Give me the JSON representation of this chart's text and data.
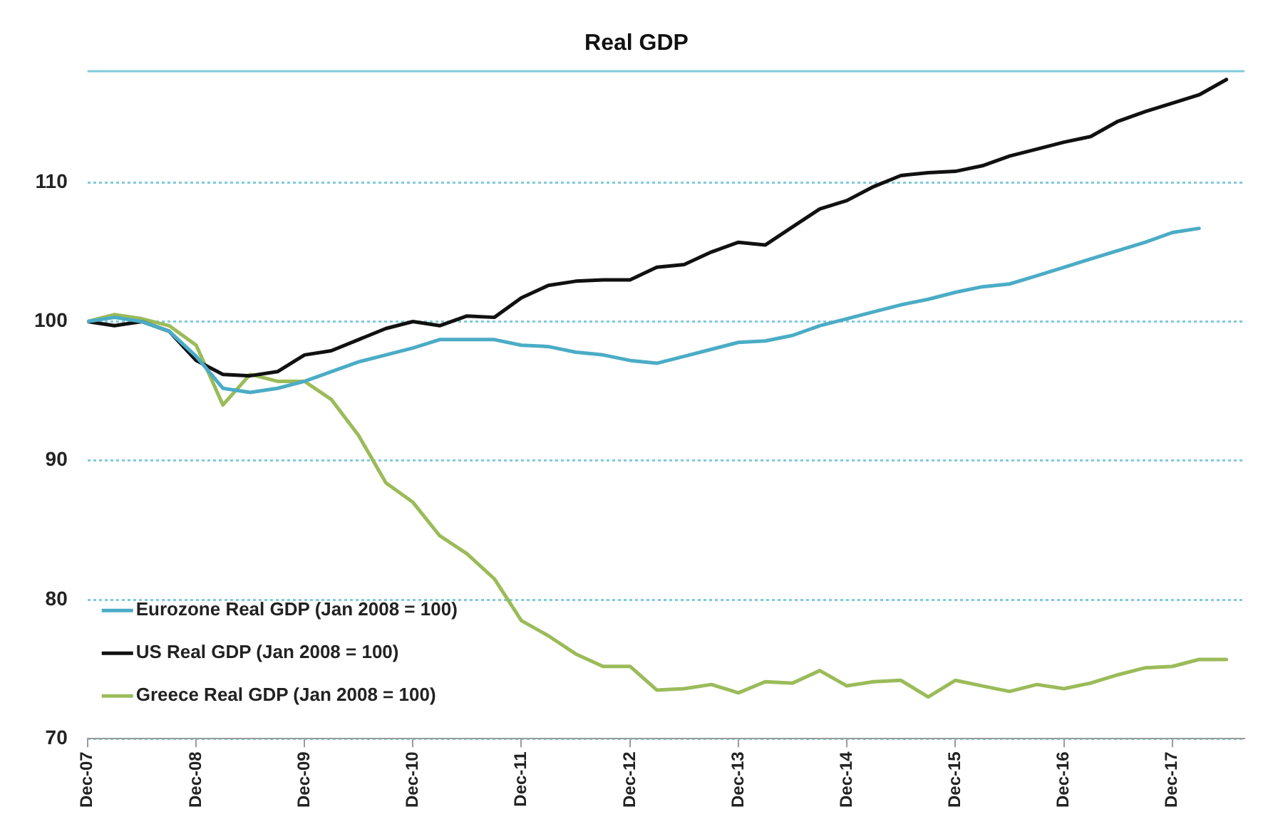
{
  "chart_data": {
    "type": "line",
    "title": "Real GDP",
    "x": [
      "2007-12",
      "2008-03",
      "2008-06",
      "2008-09",
      "2008-12",
      "2009-03",
      "2009-06",
      "2009-09",
      "2009-12",
      "2010-03",
      "2010-06",
      "2010-09",
      "2010-12",
      "2011-03",
      "2011-06",
      "2011-09",
      "2011-12",
      "2012-03",
      "2012-06",
      "2012-09",
      "2012-12",
      "2013-03",
      "2013-06",
      "2013-09",
      "2013-12",
      "2014-03",
      "2014-06",
      "2014-09",
      "2014-12",
      "2015-03",
      "2015-06",
      "2015-09",
      "2015-12",
      "2016-03",
      "2016-06",
      "2016-09",
      "2016-12",
      "2017-03",
      "2017-06",
      "2017-09",
      "2017-12",
      "2018-03",
      "2018-06"
    ],
    "series": [
      {
        "name": "Eurozone Real GDP (Jan 2008 = 100)",
        "color": "#4bacc6",
        "values": [
          100,
          100.3,
          100,
          99.3,
          97.5,
          95.2,
          94.9,
          95.2,
          95.7,
          96.4,
          97.1,
          97.6,
          98.1,
          98.7,
          98.7,
          98.7,
          98.3,
          98.2,
          97.8,
          97.6,
          97.2,
          97.0,
          97.5,
          98.0,
          98.5,
          98.6,
          99.0,
          99.7,
          100.2,
          100.7,
          101.2,
          101.6,
          102.1,
          102.5,
          102.7,
          103.3,
          103.9,
          104.5,
          105.1,
          105.7,
          106.4,
          106.7,
          null
        ]
      },
      {
        "name": "US Real GDP (Jan 2008 = 100)",
        "color": "#111111",
        "values": [
          100,
          99.7,
          100,
          99.3,
          97.2,
          96.2,
          96.1,
          96.4,
          97.6,
          97.9,
          98.7,
          99.5,
          100,
          99.7,
          100.4,
          100.3,
          101.7,
          102.6,
          102.9,
          103.0,
          103.0,
          103.9,
          104.1,
          105.0,
          105.7,
          105.5,
          106.8,
          108.1,
          108.7,
          109.7,
          110.5,
          110.7,
          110.8,
          111.2,
          111.9,
          112.4,
          112.9,
          113.3,
          114.4,
          115.1,
          115.7,
          116.3,
          117.4
        ]
      },
      {
        "name": "Greece Real GDP (Jan 2008 = 100)",
        "color": "#9bbb59",
        "values": [
          100,
          100.5,
          100.2,
          99.7,
          98.3,
          94.0,
          96.2,
          95.7,
          95.7,
          94.4,
          91.8,
          88.4,
          87.0,
          84.6,
          83.3,
          81.5,
          78.5,
          77.4,
          76.1,
          75.2,
          75.2,
          73.5,
          73.6,
          73.9,
          73.3,
          74.1,
          74.0,
          74.9,
          73.8,
          74.1,
          74.2,
          73.0,
          74.2,
          73.8,
          73.4,
          73.9,
          73.6,
          74.0,
          74.6,
          75.1,
          75.2,
          75.7,
          75.7
        ]
      }
    ],
    "xlim": [
      "2007-12",
      "2018-08"
    ],
    "xticks": [
      {
        "value": "2007-12",
        "label": "Dec-07"
      },
      {
        "value": "2008-12",
        "label": "Dec-08"
      },
      {
        "value": "2009-12",
        "label": "Dec-09"
      },
      {
        "value": "2010-12",
        "label": "Dec-10"
      },
      {
        "value": "2011-12",
        "label": "Dec-11"
      },
      {
        "value": "2012-12",
        "label": "Dec-12"
      },
      {
        "value": "2013-12",
        "label": "Dec-13"
      },
      {
        "value": "2014-12",
        "label": "Dec-14"
      },
      {
        "value": "2015-12",
        "label": "Dec-15"
      },
      {
        "value": "2016-12",
        "label": "Dec-16"
      },
      {
        "value": "2017-12",
        "label": "Dec-17"
      }
    ],
    "ylim": [
      70,
      118
    ],
    "yticks": [
      70,
      80,
      90,
      100,
      110
    ],
    "grid": "y",
    "legend": "bottom left",
    "line_style": "solid",
    "marker": "none"
  }
}
